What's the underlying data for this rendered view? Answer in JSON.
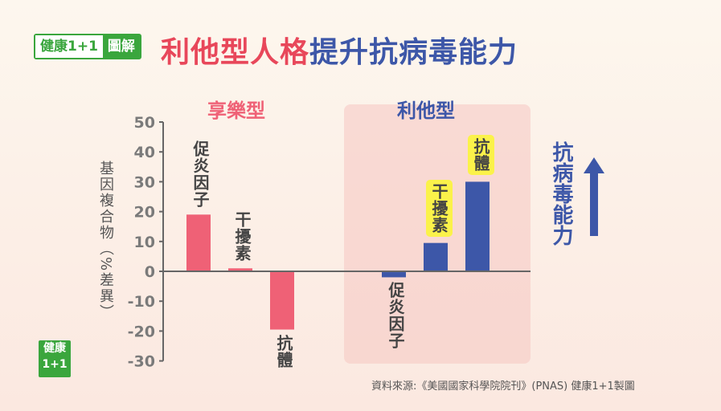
{
  "logo": {
    "text_a": "健康1+1",
    "text_b": "圖解",
    "small_a": "健康",
    "small_b": "1+1"
  },
  "title": {
    "part1": "利他型人格",
    "part2": "提升抗病毒能力"
  },
  "chart_data": {
    "type": "bar",
    "title": "利他型人格提升抗病毒能力",
    "ylabel": "基因複合物（%差異）",
    "ylim": [
      -30,
      50
    ],
    "yticks": [
      50,
      40,
      30,
      20,
      10,
      0,
      -10,
      -20,
      -30
    ],
    "groups": [
      {
        "name": "享樂型",
        "color": "#ef6176",
        "categories": [
          "促炎因子",
          "干擾素",
          "抗體"
        ],
        "values": [
          19,
          1,
          -19.5
        ]
      },
      {
        "name": "利他型",
        "color": "#3d57a8",
        "categories": [
          "促炎因子",
          "干擾素",
          "抗體"
        ],
        "values": [
          -2,
          9.5,
          30
        ]
      }
    ],
    "annotation": "抗病毒能力"
  },
  "source": "資料來源:《美國國家科學院院刊》(PNAS) 健康1+1製圖"
}
